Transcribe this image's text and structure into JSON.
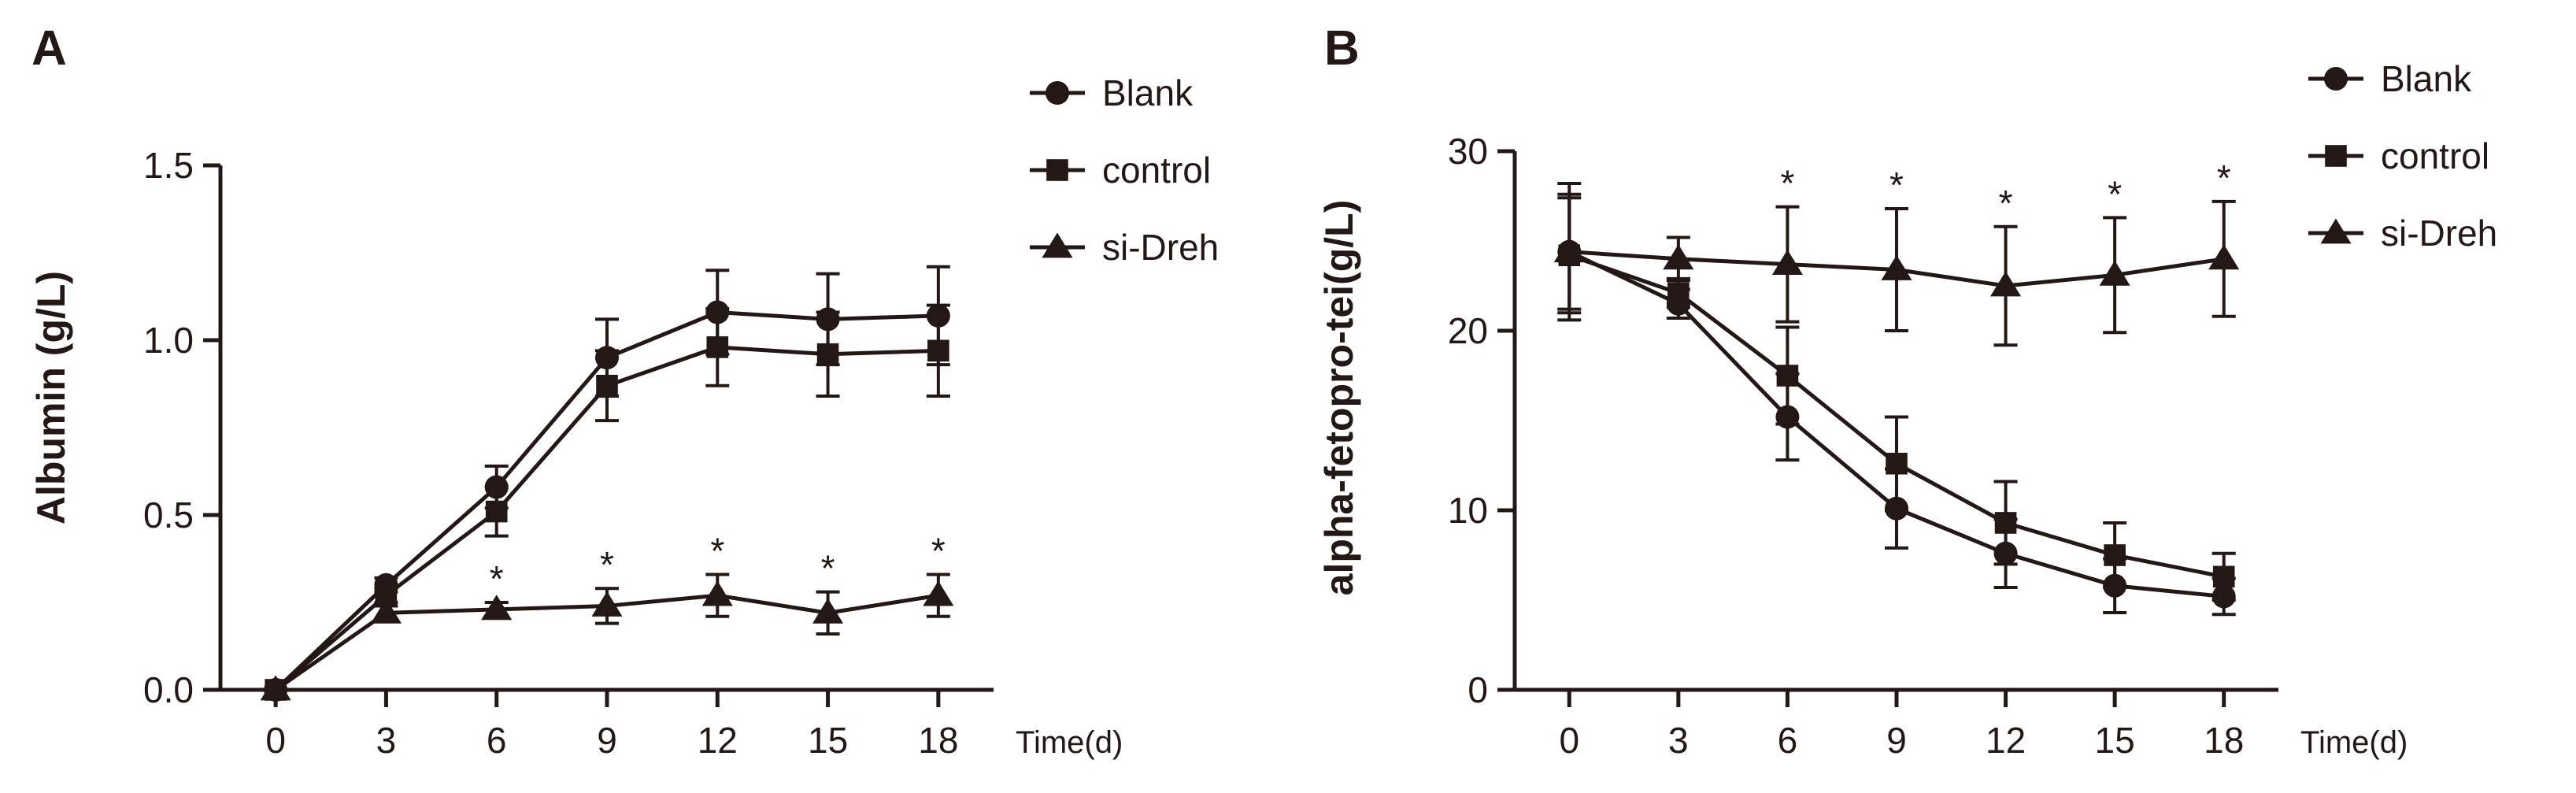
{
  "chart_data": [
    {
      "panel": "A",
      "type": "line",
      "title": "",
      "xlabel": "Time(d)",
      "ylabel": "Albumin (g/L)",
      "x": [
        0,
        3,
        6,
        9,
        12,
        15,
        18
      ],
      "xlim": [
        -1.5,
        19.5
      ],
      "ylim": [
        0,
        1.5
      ],
      "yticks": [
        0,
        0.5,
        1.0,
        1.5
      ],
      "ytick_labels": [
        "0.0",
        "0.5",
        "1.0",
        "1.5"
      ],
      "xtick_labels": [
        "0",
        "3",
        "6",
        "9",
        "12",
        "15",
        "18"
      ],
      "legend_position": "top-right",
      "series": [
        {
          "name": "Blank",
          "marker": "circle",
          "values": [
            0.0,
            0.3,
            0.58,
            0.95,
            1.08,
            1.06,
            1.07
          ],
          "errors": [
            0,
            0.02,
            0.06,
            0.11,
            0.12,
            0.13,
            0.14
          ]
        },
        {
          "name": "control",
          "marker": "square",
          "values": [
            0.0,
            0.27,
            0.51,
            0.87,
            0.98,
            0.96,
            0.97
          ],
          "errors": [
            0,
            0.02,
            0.07,
            0.1,
            0.11,
            0.12,
            0.13
          ]
        },
        {
          "name": "si-Dreh",
          "marker": "triangle",
          "values": [
            0.0,
            0.22,
            0.23,
            0.24,
            0.27,
            0.22,
            0.27
          ],
          "errors": [
            0,
            0.02,
            0.02,
            0.05,
            0.06,
            0.06,
            0.06
          ]
        }
      ],
      "annotations": [
        {
          "text": "*",
          "x": 6
        },
        {
          "text": "*",
          "x": 9
        },
        {
          "text": "*",
          "x": 12
        },
        {
          "text": "*",
          "x": 15
        },
        {
          "text": "*",
          "x": 18
        }
      ]
    },
    {
      "panel": "B",
      "type": "line",
      "title": "",
      "xlabel": "Time(d)",
      "ylabel": "alpha-fetopro-tei(g/L)",
      "x": [
        0,
        3,
        6,
        9,
        12,
        15,
        18
      ],
      "xlim": [
        -1.5,
        19.5
      ],
      "ylim": [
        0,
        30
      ],
      "yticks": [
        0,
        10,
        20,
        30
      ],
      "ytick_labels": [
        "0",
        "10",
        "20",
        "30"
      ],
      "xtick_labels": [
        "0",
        "3",
        "6",
        "9",
        "12",
        "15",
        "18"
      ],
      "legend_position": "top-right",
      "series": [
        {
          "name": "Blank",
          "marker": "circle",
          "values": [
            24.4,
            21.5,
            15.2,
            10.1,
            7.6,
            5.8,
            5.2
          ],
          "errors": [
            3.8,
            0.8,
            2.4,
            2.2,
            1.9,
            1.5,
            1.0
          ]
        },
        {
          "name": "control",
          "marker": "square",
          "values": [
            24.2,
            22.1,
            17.5,
            12.6,
            9.3,
            7.5,
            6.3
          ],
          "errors": [
            3.2,
            0.8,
            2.7,
            2.6,
            2.3,
            1.8,
            1.3
          ]
        },
        {
          "name": "si-Dreh",
          "marker": "triangle",
          "values": [
            24.4,
            24.0,
            23.7,
            23.4,
            22.5,
            23.1,
            24.0
          ],
          "errors": [
            3.2,
            1.2,
            3.2,
            3.4,
            3.3,
            3.2,
            3.2
          ]
        }
      ],
      "annotations": [
        {
          "text": "*",
          "x": 6
        },
        {
          "text": "*",
          "x": 9
        },
        {
          "text": "*",
          "x": 12
        },
        {
          "text": "*",
          "x": 15
        },
        {
          "text": "*",
          "x": 18
        }
      ]
    }
  ],
  "style": {
    "ink": "#231815"
  }
}
